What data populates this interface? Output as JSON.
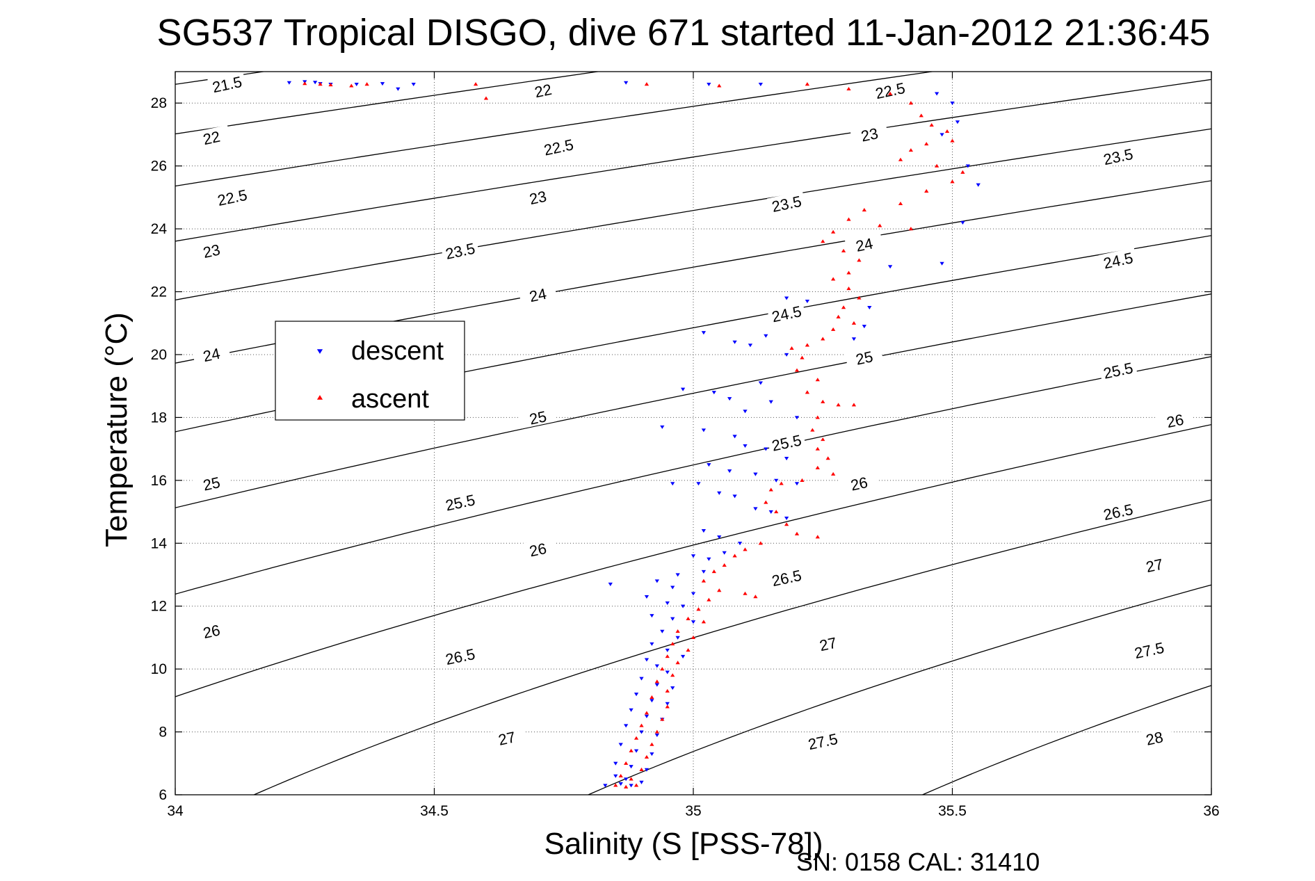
{
  "chart_data": {
    "type": "scatter",
    "title": "SG537 Tropical DISGO, dive 671 started 11-Jan-2012 21:36:45",
    "xlabel": "Salinity (S [PSS-78])",
    "ylabel": "Temperature (°C)",
    "xlim": [
      34,
      36
    ],
    "ylim": [
      6,
      29
    ],
    "xticks": [
      "34",
      "34.5",
      "35",
      "35.5",
      "36"
    ],
    "yticks": [
      "6",
      "8",
      "10",
      "12",
      "14",
      "16",
      "18",
      "20",
      "22",
      "24",
      "26",
      "28"
    ],
    "grid": true,
    "legend_placement": "middle-left",
    "footer": "SN: 0158  CAL: 31410",
    "isopycnal_contours": {
      "color": "#000000",
      "levels": [
        21.5,
        22,
        22.5,
        23,
        23.5,
        24,
        24.5,
        25,
        25.5,
        26,
        26.5,
        27,
        27.5,
        28
      ],
      "labels": [
        {
          "text": "21.5",
          "s": 34.1,
          "t": 28.6
        },
        {
          "text": "22",
          "s": 34.07,
          "t": 26.9
        },
        {
          "text": "22.5",
          "s": 34.11,
          "t": 25.0
        },
        {
          "text": "23",
          "s": 34.07,
          "t": 23.3
        },
        {
          "text": "24",
          "s": 34.07,
          "t": 20.0
        },
        {
          "text": "25",
          "s": 34.07,
          "t": 15.9
        },
        {
          "text": "26",
          "s": 34.07,
          "t": 11.2
        },
        {
          "text": "22",
          "s": 34.71,
          "t": 28.4
        },
        {
          "text": "22.5",
          "s": 34.74,
          "t": 26.6
        },
        {
          "text": "23",
          "s": 34.7,
          "t": 25.0
        },
        {
          "text": "23.5",
          "s": 34.55,
          "t": 23.3
        },
        {
          "text": "24",
          "s": 34.7,
          "t": 21.9
        },
        {
          "text": "25",
          "s": 34.7,
          "t": 18.0
        },
        {
          "text": "25.5",
          "s": 34.55,
          "t": 15.3
        },
        {
          "text": "26",
          "s": 34.7,
          "t": 13.8
        },
        {
          "text": "26.5",
          "s": 34.55,
          "t": 10.4
        },
        {
          "text": "27",
          "s": 34.64,
          "t": 7.8
        },
        {
          "text": "22.5",
          "s": 35.38,
          "t": 28.4
        },
        {
          "text": "23",
          "s": 35.34,
          "t": 27.0
        },
        {
          "text": "23.5",
          "s": 35.18,
          "t": 24.8
        },
        {
          "text": "24",
          "s": 35.33,
          "t": 23.5
        },
        {
          "text": "24.5",
          "s": 35.18,
          "t": 21.3
        },
        {
          "text": "25",
          "s": 35.33,
          "t": 19.9
        },
        {
          "text": "25.5",
          "s": 35.18,
          "t": 17.2
        },
        {
          "text": "26",
          "s": 35.32,
          "t": 15.9
        },
        {
          "text": "26.5",
          "s": 35.18,
          "t": 12.9
        },
        {
          "text": "27",
          "s": 35.26,
          "t": 10.8
        },
        {
          "text": "27.5",
          "s": 35.25,
          "t": 7.7
        },
        {
          "text": "23.5",
          "s": 35.82,
          "t": 26.3
        },
        {
          "text": "24.5",
          "s": 35.82,
          "t": 23.0
        },
        {
          "text": "25.5",
          "s": 35.82,
          "t": 19.5
        },
        {
          "text": "26",
          "s": 35.93,
          "t": 17.9
        },
        {
          "text": "26.5",
          "s": 35.82,
          "t": 15.0
        },
        {
          "text": "27",
          "s": 35.89,
          "t": 13.3
        },
        {
          "text": "27.5",
          "s": 35.88,
          "t": 10.6
        },
        {
          "text": "28",
          "s": 35.89,
          "t": 7.8
        }
      ]
    },
    "series": [
      {
        "name": "descent",
        "color": "#0000ff",
        "marker": "triangle-down",
        "points": [
          [
            34.22,
            28.65
          ],
          [
            34.25,
            28.68
          ],
          [
            34.27,
            28.66
          ],
          [
            34.28,
            28.62
          ],
          [
            34.3,
            28.6
          ],
          [
            34.35,
            28.6
          ],
          [
            34.4,
            28.62
          ],
          [
            34.43,
            28.45
          ],
          [
            34.46,
            28.6
          ],
          [
            34.87,
            28.65
          ],
          [
            35.03,
            28.6
          ],
          [
            35.13,
            28.6
          ],
          [
            35.47,
            28.3
          ],
          [
            35.5,
            28.0
          ],
          [
            35.51,
            27.4
          ],
          [
            35.48,
            27.0
          ],
          [
            35.53,
            26.0
          ],
          [
            35.55,
            25.4
          ],
          [
            35.52,
            24.2
          ],
          [
            35.48,
            22.9
          ],
          [
            35.38,
            22.8
          ],
          [
            35.34,
            21.5
          ],
          [
            35.33,
            20.9
          ],
          [
            35.31,
            20.5
          ],
          [
            35.22,
            21.7
          ],
          [
            35.18,
            21.8
          ],
          [
            35.14,
            20.6
          ],
          [
            35.11,
            20.3
          ],
          [
            35.18,
            20.0
          ],
          [
            35.02,
            20.7
          ],
          [
            35.08,
            20.4
          ],
          [
            35.13,
            19.1
          ],
          [
            34.98,
            18.9
          ],
          [
            35.04,
            18.8
          ],
          [
            35.07,
            18.6
          ],
          [
            35.1,
            18.2
          ],
          [
            35.15,
            18.5
          ],
          [
            35.2,
            18.0
          ],
          [
            34.94,
            17.7
          ],
          [
            35.02,
            17.6
          ],
          [
            35.08,
            17.4
          ],
          [
            35.1,
            17.1
          ],
          [
            35.14,
            17.0
          ],
          [
            35.18,
            16.7
          ],
          [
            35.03,
            16.5
          ],
          [
            35.07,
            16.3
          ],
          [
            35.12,
            16.2
          ],
          [
            35.16,
            16.0
          ],
          [
            35.2,
            15.9
          ],
          [
            34.96,
            15.9
          ],
          [
            35.01,
            15.9
          ],
          [
            35.05,
            15.6
          ],
          [
            35.08,
            15.5
          ],
          [
            35.12,
            15.1
          ],
          [
            35.15,
            15.0
          ],
          [
            35.18,
            14.8
          ],
          [
            35.02,
            14.4
          ],
          [
            35.05,
            14.2
          ],
          [
            35.09,
            14.0
          ],
          [
            35.0,
            13.6
          ],
          [
            35.03,
            13.5
          ],
          [
            35.06,
            13.7
          ],
          [
            34.97,
            13.0
          ],
          [
            35.02,
            13.1
          ],
          [
            34.84,
            12.7
          ],
          [
            34.93,
            12.8
          ],
          [
            34.96,
            12.6
          ],
          [
            35.0,
            12.4
          ],
          [
            34.91,
            12.3
          ],
          [
            34.95,
            12.1
          ],
          [
            34.98,
            12.0
          ],
          [
            34.92,
            11.7
          ],
          [
            34.96,
            11.6
          ],
          [
            35.0,
            11.5
          ],
          [
            34.94,
            11.2
          ],
          [
            34.97,
            11.0
          ],
          [
            34.92,
            10.8
          ],
          [
            34.95,
            10.6
          ],
          [
            34.98,
            10.4
          ],
          [
            34.91,
            10.3
          ],
          [
            34.93,
            10.1
          ],
          [
            34.95,
            9.9
          ],
          [
            34.9,
            9.7
          ],
          [
            34.93,
            9.5
          ],
          [
            34.96,
            9.4
          ],
          [
            34.89,
            9.2
          ],
          [
            34.92,
            9.0
          ],
          [
            34.95,
            8.9
          ],
          [
            34.88,
            8.7
          ],
          [
            34.91,
            8.5
          ],
          [
            34.94,
            8.4
          ],
          [
            34.87,
            8.2
          ],
          [
            34.9,
            8.0
          ],
          [
            34.93,
            7.9
          ],
          [
            34.86,
            7.6
          ],
          [
            34.89,
            7.4
          ],
          [
            34.92,
            7.3
          ],
          [
            34.85,
            7.0
          ],
          [
            34.88,
            6.9
          ],
          [
            34.91,
            6.8
          ],
          [
            34.85,
            6.6
          ],
          [
            34.87,
            6.5
          ],
          [
            34.83,
            6.3
          ],
          [
            34.86,
            6.35
          ],
          [
            34.88,
            6.3
          ],
          [
            34.9,
            6.4
          ]
        ]
      },
      {
        "name": "ascent",
        "color": "#ff0000",
        "marker": "triangle-up",
        "points": [
          [
            34.25,
            28.62
          ],
          [
            34.28,
            28.6
          ],
          [
            34.3,
            28.58
          ],
          [
            34.34,
            28.55
          ],
          [
            34.37,
            28.6
          ],
          [
            34.58,
            28.6
          ],
          [
            34.6,
            28.15
          ],
          [
            34.91,
            28.6
          ],
          [
            35.05,
            28.55
          ],
          [
            35.22,
            28.6
          ],
          [
            35.3,
            28.45
          ],
          [
            35.38,
            28.3
          ],
          [
            35.42,
            28.0
          ],
          [
            35.44,
            27.6
          ],
          [
            35.46,
            27.3
          ],
          [
            35.49,
            27.1
          ],
          [
            35.5,
            26.8
          ],
          [
            35.45,
            26.7
          ],
          [
            35.42,
            26.5
          ],
          [
            35.4,
            26.2
          ],
          [
            35.47,
            26.0
          ],
          [
            35.52,
            25.8
          ],
          [
            35.5,
            25.5
          ],
          [
            35.45,
            25.2
          ],
          [
            35.4,
            24.8
          ],
          [
            35.33,
            24.6
          ],
          [
            35.3,
            24.3
          ],
          [
            35.36,
            24.1
          ],
          [
            35.42,
            24.0
          ],
          [
            35.27,
            23.9
          ],
          [
            35.25,
            23.6
          ],
          [
            35.29,
            23.3
          ],
          [
            35.32,
            23.0
          ],
          [
            35.3,
            22.6
          ],
          [
            35.27,
            22.4
          ],
          [
            35.3,
            22.1
          ],
          [
            35.32,
            21.8
          ],
          [
            35.29,
            21.5
          ],
          [
            35.28,
            21.2
          ],
          [
            35.31,
            21.0
          ],
          [
            35.27,
            20.8
          ],
          [
            35.25,
            20.5
          ],
          [
            35.22,
            20.3
          ],
          [
            35.19,
            20.2
          ],
          [
            35.21,
            19.9
          ],
          [
            35.2,
            19.5
          ],
          [
            35.24,
            19.2
          ],
          [
            35.22,
            18.8
          ],
          [
            35.25,
            18.5
          ],
          [
            35.28,
            18.4
          ],
          [
            35.31,
            18.4
          ],
          [
            35.24,
            18.0
          ],
          [
            35.23,
            17.6
          ],
          [
            35.25,
            17.3
          ],
          [
            35.24,
            17.0
          ],
          [
            35.26,
            16.7
          ],
          [
            35.24,
            16.4
          ],
          [
            35.27,
            16.2
          ],
          [
            35.21,
            16.0
          ],
          [
            35.17,
            15.9
          ],
          [
            35.15,
            15.7
          ],
          [
            35.14,
            15.3
          ],
          [
            35.16,
            15.0
          ],
          [
            35.18,
            14.6
          ],
          [
            35.2,
            14.3
          ],
          [
            35.24,
            14.2
          ],
          [
            35.13,
            14.0
          ],
          [
            35.1,
            13.8
          ],
          [
            35.08,
            13.6
          ],
          [
            35.06,
            13.3
          ],
          [
            35.04,
            13.1
          ],
          [
            35.02,
            12.8
          ],
          [
            35.05,
            12.5
          ],
          [
            35.1,
            12.4
          ],
          [
            35.12,
            12.3
          ],
          [
            35.03,
            12.2
          ],
          [
            35.01,
            11.9
          ],
          [
            34.99,
            11.6
          ],
          [
            35.02,
            11.5
          ],
          [
            34.97,
            11.2
          ],
          [
            35.0,
            11.0
          ],
          [
            34.96,
            10.8
          ],
          [
            34.99,
            10.6
          ],
          [
            34.95,
            10.4
          ],
          [
            34.97,
            10.2
          ],
          [
            34.94,
            10.0
          ],
          [
            34.96,
            9.8
          ],
          [
            34.93,
            9.6
          ],
          [
            34.95,
            9.3
          ],
          [
            34.92,
            9.1
          ],
          [
            34.95,
            8.8
          ],
          [
            34.91,
            8.6
          ],
          [
            34.94,
            8.4
          ],
          [
            34.9,
            8.2
          ],
          [
            34.93,
            8.0
          ],
          [
            34.89,
            7.8
          ],
          [
            34.92,
            7.6
          ],
          [
            34.88,
            7.4
          ],
          [
            34.91,
            7.2
          ],
          [
            34.87,
            7.0
          ],
          [
            34.9,
            6.8
          ],
          [
            34.86,
            6.6
          ],
          [
            34.88,
            6.5
          ],
          [
            34.85,
            6.3
          ],
          [
            34.87,
            6.25
          ],
          [
            34.89,
            6.3
          ]
        ]
      }
    ]
  }
}
